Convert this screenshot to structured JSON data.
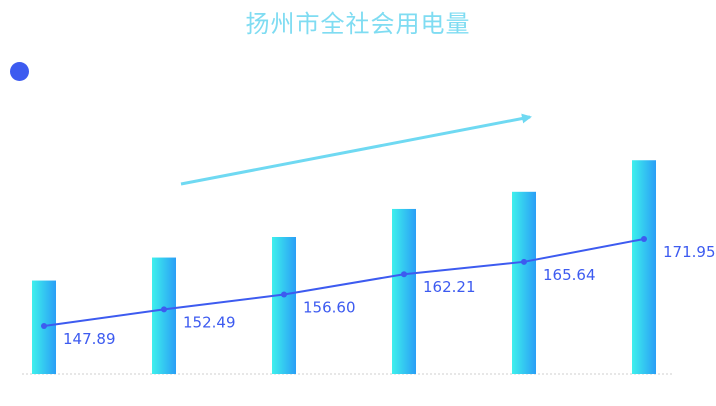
{
  "colors": {
    "title": "#7fdcf2",
    "bar_top": "#2fe6ee",
    "bar_bottom": "#2aa8f5",
    "line": "#3d5bf0",
    "label": "#3d5bf0",
    "trend_arrow": "#6fd9f2",
    "baseline": "#cfcfcf"
  },
  "chart_data": {
    "type": "bar",
    "title": "扬州市全社会用电量",
    "categories": [
      "",
      "",
      "",
      "",
      "",
      ""
    ],
    "values": [
      147.89,
      152.49,
      156.6,
      162.21,
      165.64,
      171.95
    ],
    "value_labels": [
      "147.89",
      "152.49",
      "156.60",
      "162.21",
      "165.64",
      "171.95"
    ],
    "overlay": "line",
    "legend": "top-left",
    "grid": false,
    "ylim": [
      134,
      175
    ]
  }
}
